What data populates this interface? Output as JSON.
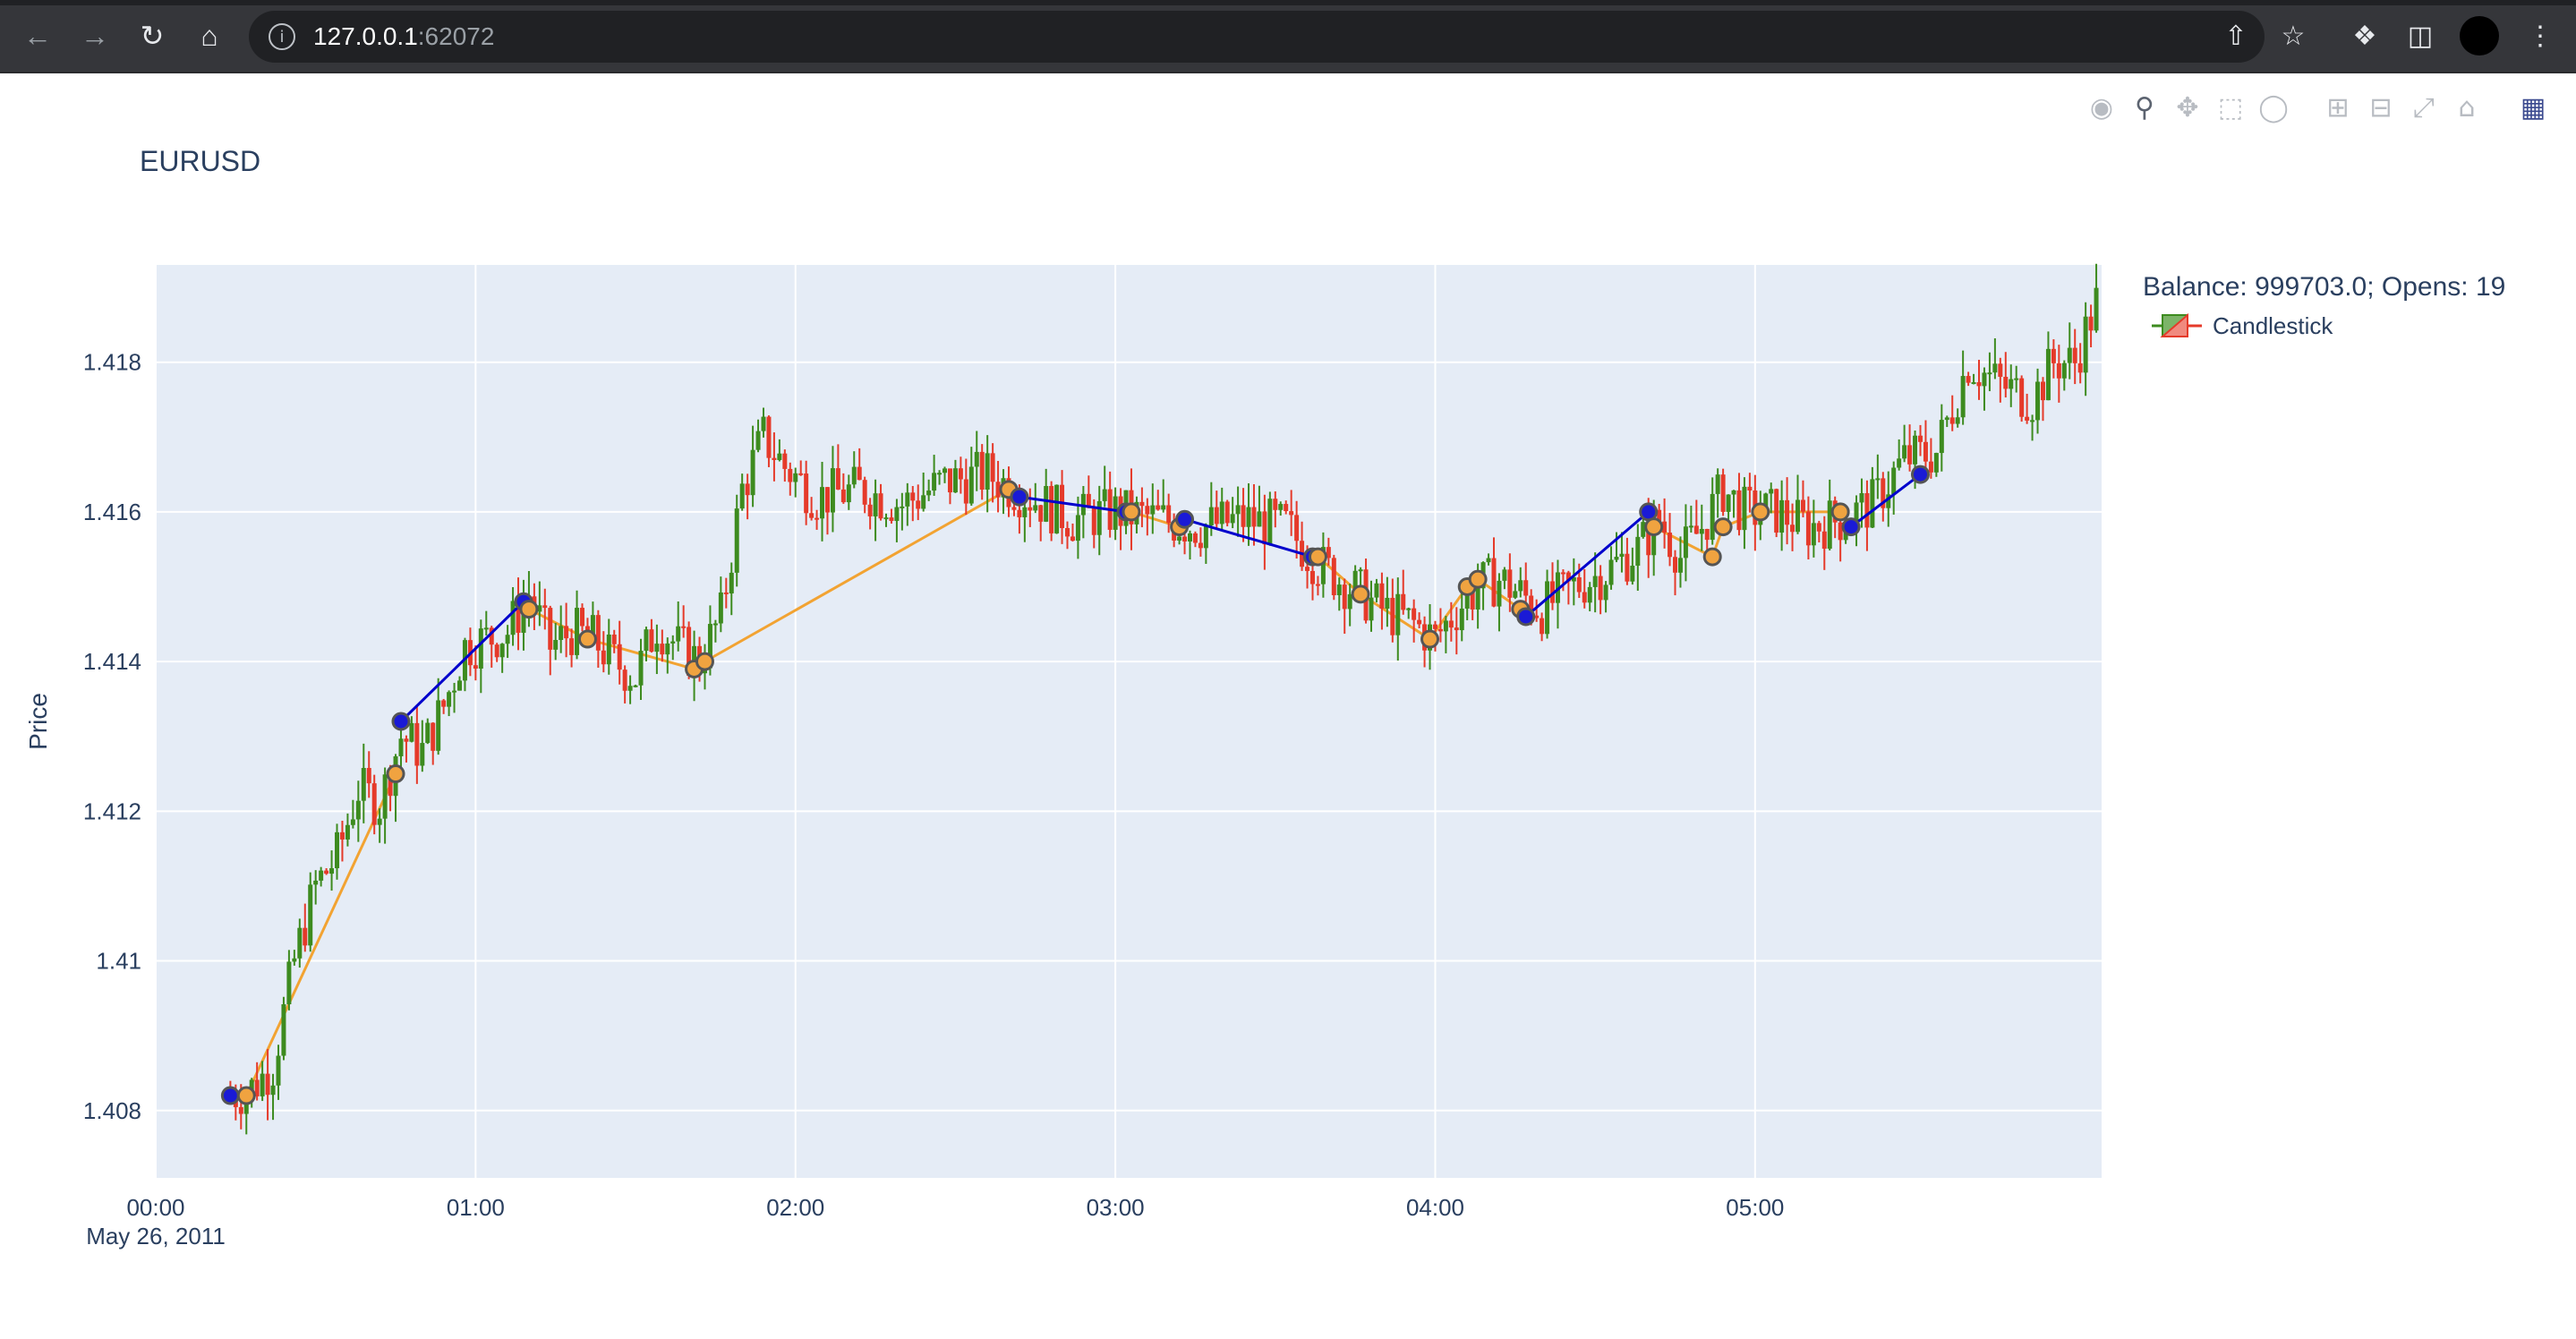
{
  "browser": {
    "url_host": "127.0.0.1",
    "url_port": ":62072",
    "icons": [
      "back-arrow-icon",
      "forward-arrow-icon",
      "reload-icon",
      "home-icon",
      "info-icon",
      "share-icon",
      "bookmark-star-icon",
      "extensions-puzzle-icon",
      "side-panel-icon",
      "profile-avatar",
      "more-menu-icon"
    ]
  },
  "modebar": {
    "icons": [
      "camera-icon",
      "zoom-icon",
      "pan-icon",
      "box-select-icon",
      "lasso-select-icon",
      "zoom-in-icon",
      "zoom-out-icon",
      "autoscale-icon",
      "reset-axes-icon",
      "plotly-logo-icon"
    ]
  },
  "chart_data": {
    "type": "candlestick",
    "title": "EURUSD",
    "ylabel": "Price",
    "xlabel": "",
    "x_ticks": [
      "00:00",
      "01:00",
      "02:00",
      "03:00",
      "04:00",
      "05:00"
    ],
    "x_date_label": "May 26, 2011",
    "x_range": [
      "2011-05-26 00:00",
      "2011-05-26 06:05"
    ],
    "ylim": [
      1.4071,
      1.4193
    ],
    "y_ticks": [
      1.408,
      1.41,
      1.412,
      1.414,
      1.416,
      1.418
    ],
    "y_tick_labels": [
      "1.408",
      "1.41",
      "1.412",
      "1.414",
      "1.416",
      "1.418"
    ],
    "grid": true,
    "colors": {
      "increasing": "#3d8b1f",
      "decreasing": "#e53a2a",
      "plot_bg": "#e5ecf6",
      "long_trade_line": "#0000cc",
      "short_trade_line": "#f2a332",
      "trade_marker_blue": "#1a1ad6",
      "trade_marker_orange": "#f0a340"
    },
    "legend": {
      "title": "Balance: 999703.0; Opens: 19",
      "entries": [
        "Candlestick"
      ],
      "placement": "right-top"
    },
    "price_path": [
      [
        "00:14",
        1.4082
      ],
      [
        "00:18",
        1.4083
      ],
      [
        "00:22",
        1.4086
      ],
      [
        "00:26",
        1.41
      ],
      [
        "00:30",
        1.411
      ],
      [
        "00:34",
        1.4114
      ],
      [
        "00:38",
        1.4123
      ],
      [
        "00:42",
        1.4121
      ],
      [
        "00:46",
        1.413
      ],
      [
        "00:50",
        1.4128
      ],
      [
        "00:54",
        1.4134
      ],
      [
        "00:58",
        1.4142
      ],
      [
        "01:02",
        1.4143
      ],
      [
        "01:06",
        1.4144
      ],
      [
        "01:10",
        1.4149
      ],
      [
        "01:14",
        1.4142
      ],
      [
        "01:18",
        1.4144
      ],
      [
        "01:22",
        1.4143
      ],
      [
        "01:26",
        1.414
      ],
      [
        "01:30",
        1.4138
      ],
      [
        "01:34",
        1.4145
      ],
      [
        "01:38",
        1.4142
      ],
      [
        "01:42",
        1.414
      ],
      [
        "01:46",
        1.4146
      ],
      [
        "01:50",
        1.4163
      ],
      [
        "01:54",
        1.417
      ],
      [
        "01:58",
        1.4166
      ],
      [
        "02:04",
        1.4162
      ],
      [
        "02:12",
        1.4163
      ],
      [
        "02:20",
        1.4161
      ],
      [
        "02:28",
        1.4164
      ],
      [
        "02:36",
        1.4165
      ],
      [
        "02:44",
        1.4162
      ],
      [
        "02:52",
        1.4159
      ],
      [
        "03:00",
        1.416
      ],
      [
        "03:08",
        1.4159
      ],
      [
        "03:16",
        1.4158
      ],
      [
        "03:24",
        1.4159
      ],
      [
        "03:32",
        1.4158
      ],
      [
        "03:38",
        1.4153
      ],
      [
        "03:44",
        1.415
      ],
      [
        "03:50",
        1.4147
      ],
      [
        "03:56",
        1.4145
      ],
      [
        "04:00",
        1.4143
      ],
      [
        "04:04",
        1.4147
      ],
      [
        "04:08",
        1.415
      ],
      [
        "04:12",
        1.4151
      ],
      [
        "04:16",
        1.4149
      ],
      [
        "04:20",
        1.4147
      ],
      [
        "04:26",
        1.415
      ],
      [
        "04:32",
        1.4152
      ],
      [
        "04:38",
        1.4155
      ],
      [
        "04:42",
        1.4159
      ],
      [
        "04:46",
        1.4154
      ],
      [
        "04:50",
        1.4158
      ],
      [
        "04:54",
        1.4163
      ],
      [
        "04:58",
        1.416
      ],
      [
        "05:04",
        1.416
      ],
      [
        "05:10",
        1.4158
      ],
      [
        "05:16",
        1.4159
      ],
      [
        "05:22",
        1.4161
      ],
      [
        "05:28",
        1.4167
      ],
      [
        "05:34",
        1.4168
      ],
      [
        "05:40",
        1.418
      ],
      [
        "05:46",
        1.4177
      ],
      [
        "05:52",
        1.4175
      ],
      [
        "05:56",
        1.418
      ],
      [
        "06:00",
        1.418
      ],
      [
        "06:04",
        1.4188
      ]
    ],
    "long_trades": [
      [
        [
          "00:14",
          1.4082
        ],
        [
          "00:17",
          1.4082
        ]
      ],
      [
        [
          "00:46",
          1.4132
        ],
        [
          "01:09",
          1.4148
        ]
      ],
      [
        [
          "02:42",
          1.4162
        ],
        [
          "03:02",
          1.416
        ]
      ],
      [
        [
          "03:13",
          1.4159
        ],
        [
          "03:37",
          1.4154
        ]
      ],
      [
        [
          "04:17",
          1.4146
        ],
        [
          "04:40",
          1.416
        ]
      ],
      [
        [
          "05:18",
          1.4158
        ],
        [
          "05:31",
          1.4165
        ]
      ]
    ],
    "short_trades": [
      [
        [
          "00:17",
          1.4082
        ],
        [
          "00:45",
          1.4125
        ]
      ],
      [
        [
          "01:10",
          1.4147
        ],
        [
          "01:21",
          1.4143
        ],
        [
          "01:41",
          1.4139
        ],
        [
          "01:43",
          1.414
        ],
        [
          "02:40",
          1.4163
        ]
      ],
      [
        [
          "03:03",
          1.416
        ],
        [
          "03:12",
          1.4158
        ]
      ],
      [
        [
          "03:38",
          1.4154
        ],
        [
          "03:46",
          1.4149
        ],
        [
          "03:59",
          1.4143
        ],
        [
          "04:06",
          1.415
        ],
        [
          "04:08",
          1.4151
        ],
        [
          "04:16",
          1.4147
        ]
      ],
      [
        [
          "04:41",
          1.4158
        ],
        [
          "04:52",
          1.4154
        ],
        [
          "04:54",
          1.4158
        ],
        [
          "05:01",
          1.416
        ],
        [
          "05:16",
          1.416
        ]
      ]
    ],
    "trade_points": [
      {
        "t": "00:14",
        "p": 1.4082,
        "color": "blue"
      },
      {
        "t": "00:17",
        "p": 1.4082,
        "color": "orange"
      },
      {
        "t": "00:45",
        "p": 1.4125,
        "color": "orange"
      },
      {
        "t": "00:46",
        "p": 1.4132,
        "color": "blue"
      },
      {
        "t": "01:09",
        "p": 1.4148,
        "color": "blue"
      },
      {
        "t": "01:10",
        "p": 1.4147,
        "color": "orange"
      },
      {
        "t": "01:21",
        "p": 1.4143,
        "color": "orange"
      },
      {
        "t": "01:41",
        "p": 1.4139,
        "color": "orange"
      },
      {
        "t": "01:43",
        "p": 1.414,
        "color": "orange"
      },
      {
        "t": "02:40",
        "p": 1.4163,
        "color": "orange"
      },
      {
        "t": "02:42",
        "p": 1.4162,
        "color": "blue"
      },
      {
        "t": "03:02",
        "p": 1.416,
        "color": "blue"
      },
      {
        "t": "03:03",
        "p": 1.416,
        "color": "orange"
      },
      {
        "t": "03:12",
        "p": 1.4158,
        "color": "orange"
      },
      {
        "t": "03:13",
        "p": 1.4159,
        "color": "blue"
      },
      {
        "t": "03:37",
        "p": 1.4154,
        "color": "blue"
      },
      {
        "t": "03:38",
        "p": 1.4154,
        "color": "orange"
      },
      {
        "t": "03:46",
        "p": 1.4149,
        "color": "orange"
      },
      {
        "t": "03:59",
        "p": 1.4143,
        "color": "orange"
      },
      {
        "t": "04:06",
        "p": 1.415,
        "color": "orange"
      },
      {
        "t": "04:08",
        "p": 1.4151,
        "color": "orange"
      },
      {
        "t": "04:16",
        "p": 1.4147,
        "color": "orange"
      },
      {
        "t": "04:17",
        "p": 1.4146,
        "color": "blue"
      },
      {
        "t": "04:40",
        "p": 1.416,
        "color": "blue"
      },
      {
        "t": "04:41",
        "p": 1.4158,
        "color": "orange"
      },
      {
        "t": "04:52",
        "p": 1.4154,
        "color": "orange"
      },
      {
        "t": "04:54",
        "p": 1.4158,
        "color": "orange"
      },
      {
        "t": "05:01",
        "p": 1.416,
        "color": "orange"
      },
      {
        "t": "05:16",
        "p": 1.416,
        "color": "orange"
      },
      {
        "t": "05:18",
        "p": 1.4158,
        "color": "blue"
      },
      {
        "t": "05:31",
        "p": 1.4165,
        "color": "blue"
      }
    ]
  }
}
